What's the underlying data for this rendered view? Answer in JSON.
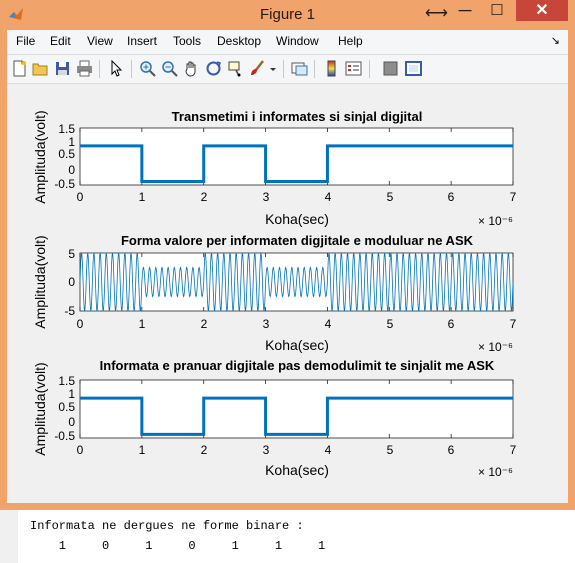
{
  "window": {
    "title": "Figure 1",
    "move_glyph": "⟷",
    "min_glyph": "─",
    "max_glyph": "☐",
    "close_glyph": "✕"
  },
  "menu": [
    "File",
    "Edit",
    "View",
    "Insert",
    "Tools",
    "Desktop",
    "Window",
    "Help"
  ],
  "menu_arrow": "↘",
  "toolbar_icons": [
    "new-figure-icon",
    "open-file-icon",
    "save-icon",
    "print-icon",
    "edit-plot-arrow-icon",
    "zoom-in-icon",
    "zoom-out-icon",
    "pan-hand-icon",
    "rotate-3d-icon",
    "data-cursor-icon",
    "brush-icon",
    "brush-dropdown-icon",
    "link-plot-icon",
    "insert-colorbar-icon",
    "insert-legend-icon",
    "hide-plot-tools-icon",
    "show-plot-tools-icon"
  ],
  "colors": {
    "title_bar": "#f0a36a",
    "close_button": "#c7463a",
    "line": "#0072bd",
    "figure_bg": "#f0f0f0"
  },
  "chart_data": [
    {
      "type": "line",
      "title": "Transmetimi i informates si sinjal digjital",
      "xlabel": "Koha(sec)",
      "ylabel": "Amplituda(volt)",
      "x_exponent": "× 10⁻⁶",
      "xlim": [
        0,
        7
      ],
      "ylim": [
        -0.1,
        1.5
      ],
      "xticks": [
        "0",
        "1",
        "2",
        "3",
        "4",
        "5",
        "6",
        "7"
      ],
      "yticks": [
        "1.5",
        "1",
        "0.5",
        "0",
        "-0.5"
      ],
      "bits": [
        1,
        0,
        1,
        0,
        1,
        1,
        1
      ],
      "series": [
        {
          "values": [
            1,
            0,
            1,
            0,
            1,
            1,
            1
          ]
        }
      ]
    },
    {
      "type": "line",
      "title": "Forma valore per informaten digjitale e moduluar ne ASK",
      "xlabel": "Koha(sec)",
      "ylabel": "Amplituda(volt)",
      "x_exponent": "× 10⁻⁶",
      "xlim": [
        0,
        7
      ],
      "ylim": [
        -5,
        5
      ],
      "xticks": [
        "0",
        "1",
        "2",
        "3",
        "4",
        "5",
        "6",
        "7"
      ],
      "yticks": [
        "5",
        "0",
        "-5"
      ],
      "carrier_cycles_per_bit": 10,
      "amplitude_bit1": 5,
      "amplitude_bit0": 2.5,
      "bits": [
        1,
        0,
        1,
        0,
        1,
        1,
        1
      ]
    },
    {
      "type": "line",
      "title": "Informata e pranuar digjitale pas demodulimit te sinjalit me ASK",
      "xlabel": "Koha(sec)",
      "ylabel": "Amplituda(volt)",
      "x_exponent": "× 10⁻⁶",
      "xlim": [
        0,
        7
      ],
      "ylim": [
        -0.1,
        1.5
      ],
      "xticks": [
        "0",
        "1",
        "2",
        "3",
        "4",
        "5",
        "6",
        "7"
      ],
      "yticks": [
        "1.5",
        "1",
        "0.5",
        "0",
        "-0.5"
      ],
      "bits": [
        1,
        0,
        1,
        0,
        1,
        1,
        1
      ],
      "series": [
        {
          "values": [
            1,
            0,
            1,
            0,
            1,
            1,
            1
          ]
        }
      ]
    }
  ],
  "console": {
    "line1": "Informata ne dergues ne forme binare :",
    "line2": "    1     0     1     0     1     1     1"
  }
}
